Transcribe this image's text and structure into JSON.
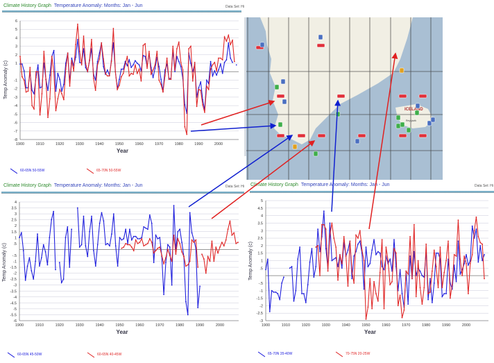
{
  "panels": [
    {
      "title": "Climate History Graph",
      "subtitle": "Temperature Anomaly: Months: Jan - Jun",
      "dataset_label": "Data Set: Hi"
    },
    {
      "title": "Climate History Graph",
      "subtitle": "Temperature Anomaly: Months: Jan - Jun",
      "dataset_label": "Data Set: Hi"
    },
    {
      "title": "Climate History Graph",
      "subtitle": "Temperature Anomaly: Months: Jan - Jun",
      "dataset_label": "Data Set: Hi"
    }
  ],
  "map": {
    "country_label": "ICELAND",
    "city_label": "Reykjavik",
    "colors": {
      "sea": "#a9bfd3",
      "land": "#f1efe4",
      "grid": "#333333",
      "marker_red": "#e0303a",
      "marker_blue": "#4a6fc0",
      "marker_green": "#3fae4a",
      "marker_orange": "#e0a020"
    }
  },
  "arrows": {
    "colors": {
      "red": "#e02020",
      "blue": "#1020d0"
    }
  },
  "chart_data": [
    {
      "type": "line",
      "xlabel": "Year",
      "ylabel": "Temp Anomaly (c)",
      "xlim": [
        1900,
        2010
      ],
      "ylim": [
        -8,
        6
      ],
      "ystep": 1,
      "xticks": [
        1900,
        1910,
        1920,
        1930,
        1940,
        1950,
        1960,
        1970,
        1980,
        1990,
        2000
      ],
      "grid": true,
      "legend": "bottom",
      "series": [
        {
          "name": "60-65N 50-55W",
          "color": "#2020dd",
          "start": 1900,
          "values": [
            0.9,
            0.9,
            0.1,
            -1.9,
            -1.9,
            -0.1,
            -2.2,
            -2.6,
            -0.7,
            0.8,
            -1.9,
            -1.8,
            1,
            -0.9,
            -2.2,
            -0.4,
            1.8,
            2.5,
            -2.3,
            -0.2,
            -0.9,
            -2.3,
            -1.5,
            1,
            2.2,
            -1.2,
            1.6,
            0.7,
            1.7,
            3.8,
            1.1,
            1,
            2.7,
            0.5,
            0,
            1.3,
            2.7,
            -0.3,
            -1,
            1.2,
            2.2,
            3.4,
            0.6,
            -0.3,
            0.2,
            -0.4,
            1.3,
            3.4,
            0,
            -2,
            -0.9,
            0.3,
            0.3,
            1.2,
            0.7,
            1.4,
            0.5,
            0.8,
            1.3,
            1,
            0.8,
            0.1,
            1.9,
            1.8,
            0.6,
            2.1,
            0.5,
            -0.7,
            0.4,
            1.7,
            0.6,
            -0.9,
            -2.3,
            0.2,
            0.9,
            -0.8,
            -0.8,
            2.5,
            0,
            1.8,
            1.2,
            0.6,
            -0.8,
            -3.9,
            -4.9,
            2.2,
            1,
            0,
            0.9,
            -3,
            -1.9,
            -1.2,
            -3.3,
            -4.5,
            -1,
            -1.4,
            1.2,
            -0.5,
            0.1,
            -0.4,
            0.2,
            0.9,
            -0.2,
            1.1,
            1.4,
            3.4,
            1.6,
            1.1,
            null,
            0.8
          ]
        },
        {
          "name": "65-70N 50-55W",
          "color": "#e02828",
          "start": 1900,
          "values": [
            1.8,
            -0.6,
            -1,
            -2.4,
            -2.3,
            0.5,
            -4,
            -4.4,
            0,
            0,
            -5.1,
            -2.6,
            2.4,
            -0.9,
            -5.4,
            -3.2,
            1.8,
            0,
            -4.6,
            -3.2,
            -2.1,
            -2.6,
            -3.3,
            0.3,
            2.2,
            -1.7,
            1.3,
            0.1,
            3.2,
            5.6,
            2.4,
            0.8,
            4.2,
            1,
            0,
            1.4,
            3.8,
            -0.8,
            -2.2,
            0.8,
            1.5,
            3.4,
            1.5,
            -0.2,
            -0.5,
            -0.5,
            1.2,
            5.1,
            0,
            -2.1,
            -1.6,
            -0.6,
            -0.2,
            0.9,
            1.8,
            -0.5,
            -0.2,
            -0.3,
            0.8,
            -0.2,
            0.3,
            -1.1,
            3.1,
            3.3,
            0.4,
            2.4,
            -0.3,
            0.2,
            0.8,
            2.4,
            -1,
            -1.5,
            -2.4,
            -0.5,
            1.6,
            -0.9,
            -0.9,
            3,
            0.2,
            2.7,
            3.5,
            1.1,
            0.2,
            -6.5,
            -7.4,
            2.7,
            3,
            -1.1,
            1.1,
            -4.1,
            -2.1,
            -2.2,
            -3.9,
            -4.8,
            -1.7,
            -2.1,
            0.3,
            0.8,
            1.1,
            0.1,
            1.6,
            1.6,
            1.4,
            4.1,
            3.6,
            4.3,
            3.2,
            3.7,
            1.2
          ]
        }
      ]
    },
    {
      "type": "line",
      "xlabel": "Year",
      "ylabel": "Temp Anomaly (c)",
      "xlim": [
        1900,
        2010
      ],
      "ylim": [
        -6,
        4
      ],
      "ystep": 0.5,
      "xticks": [
        1900,
        1910,
        1920,
        1930,
        1940,
        1950,
        1960,
        1970,
        1980,
        1990,
        2000
      ],
      "grid": true,
      "legend": "bottom",
      "series": [
        {
          "name": "60-65N 45-50W",
          "color": "#2020dd",
          "start": 1900,
          "values": [
            1,
            1.4,
            -0.1,
            -2.6,
            -1.4,
            -0.7,
            -1.8,
            -2.5,
            -1,
            1.3,
            -1.4,
            -0.7,
            0.4,
            -0.2,
            -1.3,
            1,
            2.5,
            3.2,
            -1.7,
            null,
            -1.1,
            -2.8,
            -2.5,
            1,
            1.9,
            -1.5,
            1.7,
            null,
            null,
            3.5,
            0.2,
            0.4,
            2.8,
            0.3,
            -0.6,
            1.5,
            2.8,
            -0.1,
            -1.4,
            0.4,
            2.2,
            3.1,
            2.4,
            0.4,
            0.5,
            0.3,
            1.3,
            3,
            0.3,
            -1.4,
            1,
            0.8,
            0.9,
            1.7,
            0.5,
            1.7,
            0.8,
            1.1,
            1.1,
            0.9,
            0.9,
            1,
            1.9,
            1.8,
            1.7,
            2.9,
            2.2,
            -1.1,
            1.2,
            0.9,
            1,
            -0.6,
            -3.8,
            -1.1,
            0.4,
            0.2,
            -3,
            3.7,
            0,
            1.5,
            1.7,
            0.6,
            -0.6,
            -4.4,
            -5.5,
            3.1,
            1.4,
            0.8,
            0.1,
            -4.9,
            -3.1
          ]
        },
        {
          "name": "60-65N 40-45W",
          "color": "#e02828",
          "start": 1951,
          "values": [
            0.1,
            0.2,
            0.5,
            0.4,
            0.4,
            0.2,
            -0.1,
            0.8,
            0.5,
            0.6,
            0.9,
            0.3,
            0.4,
            0.5,
            0.9,
            0.6,
            -0.3,
            -0.1,
            0.1,
            0.2,
            -0.5,
            -1.2,
            -0.7,
            0,
            -0.5,
            -1,
            1.2,
            -0.4,
            0.9,
            0.5,
            -0.2,
            -0.6,
            -1.4,
            -1.3,
            -1,
            0.8,
            0.6,
            0.8,
            -1.5,
            null,
            -0.4,
            -0.8,
            -2,
            -0.6,
            -1,
            0.7,
            -1,
            0.2,
            -0.3,
            0.2,
            0.6,
            0.3,
            0.8,
            1.7,
            2.4,
            1.2,
            1.4,
            0.5,
            0.6
          ]
        }
      ]
    },
    {
      "type": "line",
      "xlabel": "Year",
      "ylabel": "Temp Anomaly (c)",
      "xlim": [
        1900,
        2010
      ],
      "ylim": [
        -3,
        5
      ],
      "ystep": 0.5,
      "xticks": [
        1900,
        1910,
        1920,
        1930,
        1940,
        1950,
        1960,
        1970,
        1980,
        1990,
        2000
      ],
      "grid": true,
      "legend": "bottom",
      "series": [
        {
          "name": "65-70N 35-40W",
          "color": "#2020dd",
          "start": 1900,
          "values": [
            0.4,
            1.1,
            -2.4,
            -1,
            -1.1,
            -1.1,
            -1.2,
            -1.6,
            -0.5,
            -0.1,
            null,
            null,
            0.5,
            0.6,
            -1.7,
            -1,
            1.1,
            1.9,
            -1.2,
            -1.2,
            -1.8,
            -0.6,
            0.9,
            1.8,
            -0.1,
            0.6,
            3.1,
            1.6,
            2.6,
            4.3,
            1.8,
            0.5,
            3.5,
            1,
            1.1,
            1.2,
            0.6,
            1.4,
            0.5,
            2.2,
            1.3,
            1.7,
            2.3,
            -0.2,
            1.3,
            1.6,
            2.1,
            2.3,
            1.5,
            -0.9,
            1.9,
            0.6,
            0.8,
            1.7,
            2.4,
            1.4,
            1.6,
            1.5,
            0.6,
            0.4,
            1.3,
            0.8,
            1.1,
            0.3,
            2.4,
            0.6,
            -1,
            0.4,
            -1.2,
            -2.1,
            0.3,
            -1.9,
            1.3,
            -0.2,
            1.6,
            0,
            0.5,
            0.3,
            0,
            -0.1,
            1.7,
            -1.6,
            -0.2,
            -1.8,
            -0.5,
            1.5,
            1.5,
            1.1,
            -1.4,
            -1.2,
            -1.2,
            1.1,
            -0.5,
            -0.9,
            0.7,
            -0.4,
            2.3,
            0.1,
            0.4,
            0.8,
            1.4,
            0.7,
            1,
            3.3,
            2.5,
            3.1,
            0.9,
            2,
            1,
            1.4
          ]
        },
        {
          "name": "70-75N 20-25W",
          "color": "#e02828",
          "start": 1925,
          "values": [
            1.9,
            2,
            0,
            3.4,
            3.4,
            3.1,
            0.3,
            2.7,
            3.5,
            2.5,
            1.9,
            -0.3,
            1.4,
            0.8,
            2.6,
            1.3,
            -0.7,
            2.3,
            0.3,
            -0.5,
            2.7,
            2.5,
            3,
            1.7,
            1,
            -2.9,
            -2.1,
            -0.2,
            -2.2,
            -0.4,
            -1.2,
            -1.7,
            0.2,
            2.4,
            -2.2,
            1.9,
            1,
            -0.6,
            -0.4,
            1.8,
            1.5,
            -2,
            -1.3,
            -2.8,
            -2.3,
            0.3,
            0.1,
            2.6,
            -0.2,
            3.4,
            -1.4,
            1,
            -0.8,
            -1.9,
            -0.8,
            2.1,
            -1.2,
            -1.1,
            0.3,
            1.7,
            0.6,
            -0.8,
            1.9,
            -0.8,
            0.2,
            1,
            2.3,
            -1.5,
            -0.6,
            1.4,
            1.3,
            3.7,
            1.1,
            0,
            1.3,
            0.8,
            -1.2,
            0.8,
            1.4,
            3,
            3.9,
            2.6,
            2.2,
            2.1,
            -0.2
          ]
        }
      ]
    }
  ]
}
